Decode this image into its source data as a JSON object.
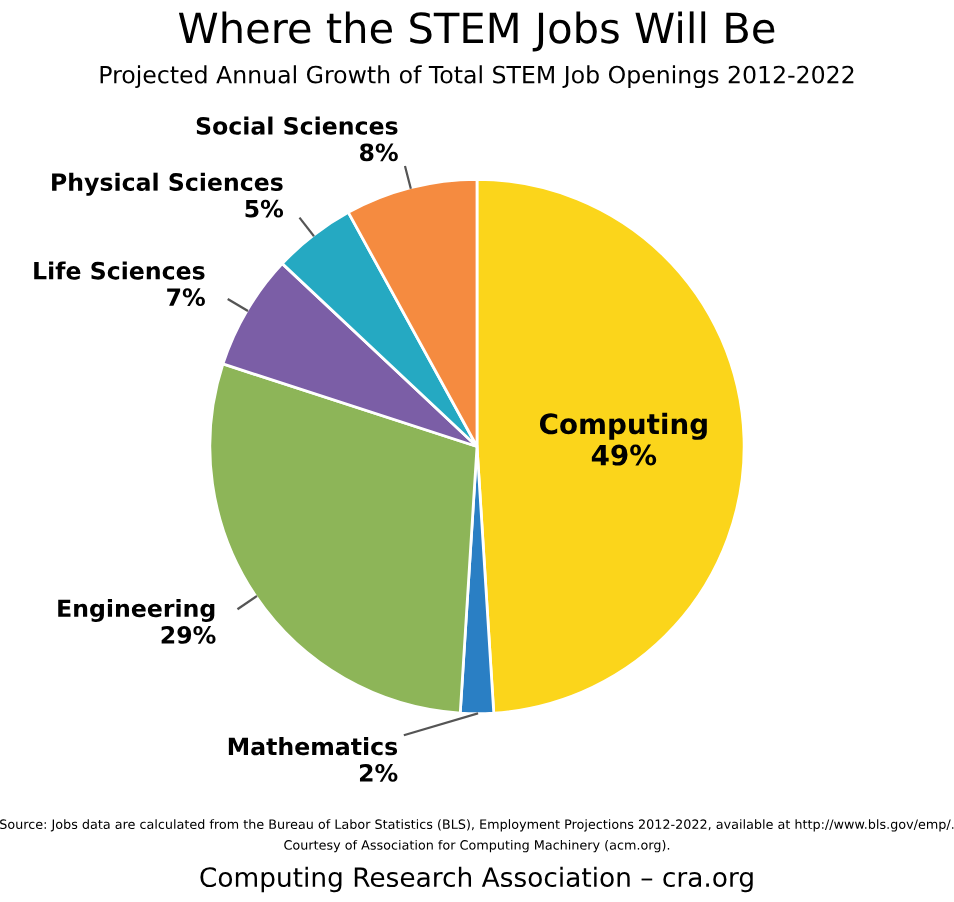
{
  "chart_data": {
    "type": "pie",
    "title": "Where the STEM Jobs Will Be",
    "subtitle": "Projected Annual Growth of Total STEM Job Openings 2012-2022",
    "categories": [
      "Computing",
      "Mathematics",
      "Engineering",
      "Life Sciences",
      "Physical Sciences",
      "Social Sciences"
    ],
    "values": [
      49,
      2,
      29,
      7,
      5,
      8
    ],
    "value_labels": [
      "49%",
      "2%",
      "29%",
      "7%",
      "5%",
      "8%"
    ],
    "colors": [
      "#fbd51b",
      "#2a7fc4",
      "#8db558",
      "#7b5ea6",
      "#25a9c2",
      "#f58b40"
    ],
    "annotations": [
      "Source: Jobs data are calculated from the Bureau of Labor Statistics (BLS), Employment Projections 2012-2022, available at http://www.bls.gov/emp/.",
      "Courtesy of Association for Computing Machinery (acm.org).",
      "Computing Research Association – cra.org"
    ]
  }
}
